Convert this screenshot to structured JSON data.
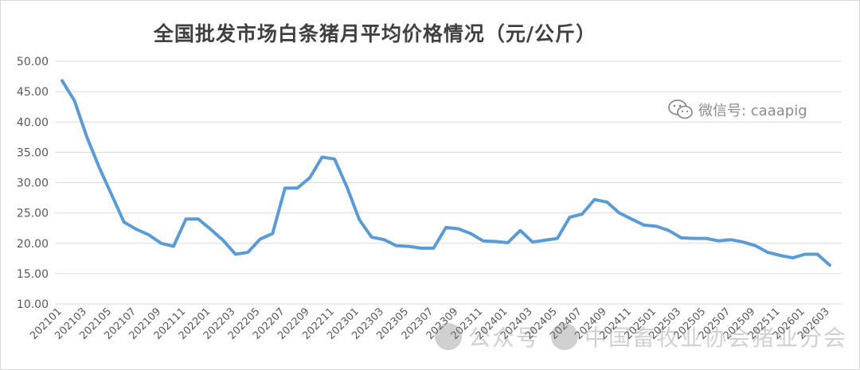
{
  "chart_data": {
    "type": "line",
    "title": "全国批发市场白条猪月平均价格情况（元/公斤）",
    "xlabel": "",
    "ylabel": "",
    "ylim": [
      10,
      50
    ],
    "y_ticks": [
      "10.00",
      "15.00",
      "20.00",
      "25.00",
      "30.00",
      "35.00",
      "40.00",
      "45.00",
      "50.00"
    ],
    "grid": "horizontal",
    "x_tick_labels": [
      "202101",
      "202103",
      "202105",
      "202107",
      "202109",
      "202111",
      "202201",
      "202203",
      "202205",
      "202207",
      "202209",
      "202211",
      "202301",
      "202303",
      "202305",
      "202307",
      "202309",
      "202311",
      "202401",
      "202403",
      "202405",
      "202407",
      "202409",
      "202411",
      "202501",
      "202503",
      "202505",
      "202507",
      "202509",
      "202511",
      "202601",
      "202603"
    ],
    "x": [
      "202101",
      "202102",
      "202103",
      "202104",
      "202105",
      "202106",
      "202107",
      "202108",
      "202109",
      "202110",
      "202111",
      "202112",
      "202201",
      "202202",
      "202203",
      "202204",
      "202205",
      "202206",
      "202207",
      "202208",
      "202209",
      "202210",
      "202211",
      "202212",
      "202301",
      "202302",
      "202303",
      "202304",
      "202305",
      "202306",
      "202307",
      "202308",
      "202309",
      "202310",
      "202311",
      "202312",
      "202401",
      "202402",
      "202403",
      "202404",
      "202405",
      "202406",
      "202407",
      "202408",
      "202409",
      "202410",
      "202411",
      "202412",
      "202501",
      "202502",
      "202503",
      "202504",
      "202505",
      "202506",
      "202507",
      "202508",
      "202509",
      "202510",
      "202511",
      "202512",
      "202601",
      "202602",
      "202603"
    ],
    "series": [
      {
        "values": [
          46.8,
          43.5,
          37.5,
          32.5,
          28.0,
          23.5,
          22.3,
          21.4,
          20.0,
          19.5,
          24.0,
          24.0,
          22.3,
          20.5,
          18.2,
          18.5,
          20.7,
          21.6,
          29.1,
          29.1,
          30.8,
          34.2,
          33.9,
          29.3,
          23.9,
          21.0,
          20.6,
          19.6,
          19.5,
          19.2,
          19.2,
          22.6,
          22.4,
          21.6,
          20.4,
          20.3,
          20.1,
          22.1,
          20.2,
          20.5,
          20.8,
          24.3,
          24.8,
          27.2,
          26.8,
          25.0,
          24.0,
          23.0,
          22.8,
          22.1,
          20.9,
          20.8,
          20.8,
          20.4,
          20.6,
          20.2,
          19.6,
          18.5,
          18.0,
          17.6,
          18.2,
          18.2,
          16.4
        ],
        "color": "#5b9bd5"
      }
    ]
  },
  "watermarks": {
    "top_text": "微信号: caaapig",
    "bottom_text_1": "公众号",
    "bottom_text_2": "中国畜牧业协会猪业分会"
  },
  "colors": {
    "line": "#5b9bd5",
    "grid": "#d9d9d9",
    "axis_text": "#595959",
    "title": "#404040"
  }
}
